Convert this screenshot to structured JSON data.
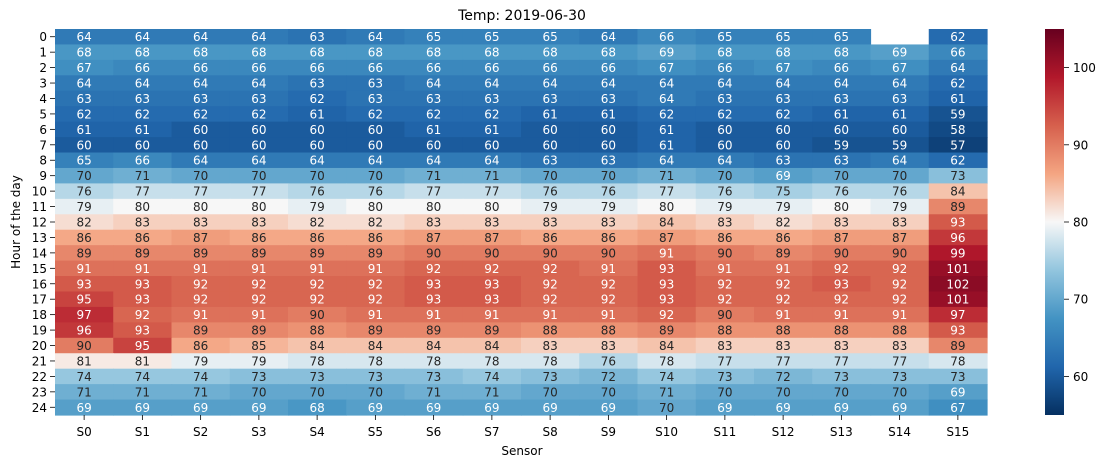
{
  "chart_data": {
    "type": "heatmap",
    "title": "Temp: 2019-06-30",
    "xlabel": "Sensor",
    "ylabel": "Hour of the day",
    "x_categories": [
      "S0",
      "S1",
      "S2",
      "S3",
      "S4",
      "S5",
      "S6",
      "S7",
      "S8",
      "S9",
      "S10",
      "S11",
      "S12",
      "S13",
      "S14",
      "S15"
    ],
    "y_categories": [
      "0",
      "1",
      "2",
      "3",
      "4",
      "5",
      "6",
      "7",
      "8",
      "9",
      "10",
      "11",
      "12",
      "13",
      "14",
      "15",
      "16",
      "17",
      "18",
      "19",
      "20",
      "21",
      "22",
      "23",
      "24"
    ],
    "values": [
      [
        64,
        64,
        64,
        64,
        63,
        64,
        65,
        65,
        65,
        64,
        66,
        65,
        65,
        65,
        null,
        62
      ],
      [
        68,
        68,
        68,
        68,
        68,
        68,
        68,
        68,
        68,
        68,
        69,
        68,
        68,
        68,
        69,
        66
      ],
      [
        67,
        66,
        66,
        66,
        66,
        66,
        66,
        66,
        66,
        66,
        67,
        66,
        67,
        66,
        67,
        64
      ],
      [
        64,
        64,
        64,
        64,
        63,
        63,
        64,
        64,
        64,
        64,
        64,
        64,
        64,
        64,
        64,
        62
      ],
      [
        63,
        63,
        63,
        63,
        62,
        63,
        63,
        63,
        63,
        63,
        64,
        63,
        63,
        63,
        63,
        61
      ],
      [
        62,
        62,
        62,
        62,
        61,
        62,
        62,
        62,
        61,
        61,
        62,
        62,
        62,
        61,
        61,
        59
      ],
      [
        61,
        61,
        60,
        60,
        60,
        60,
        61,
        61,
        60,
        60,
        61,
        60,
        60,
        60,
        60,
        58
      ],
      [
        60,
        60,
        60,
        60,
        60,
        60,
        60,
        60,
        60,
        60,
        61,
        60,
        60,
        59,
        59,
        57
      ],
      [
        65,
        66,
        64,
        64,
        64,
        64,
        64,
        64,
        63,
        63,
        64,
        64,
        63,
        63,
        64,
        62
      ],
      [
        70,
        71,
        70,
        70,
        70,
        70,
        71,
        71,
        70,
        70,
        71,
        70,
        69,
        70,
        70,
        73
      ],
      [
        76,
        77,
        77,
        77,
        76,
        76,
        77,
        77,
        76,
        76,
        77,
        76,
        75,
        76,
        76,
        84
      ],
      [
        79,
        80,
        80,
        80,
        79,
        80,
        80,
        80,
        79,
        79,
        80,
        79,
        79,
        80,
        79,
        89
      ],
      [
        82,
        83,
        83,
        83,
        82,
        82,
        83,
        83,
        83,
        83,
        84,
        83,
        82,
        83,
        83,
        93
      ],
      [
        86,
        86,
        87,
        86,
        86,
        86,
        87,
        87,
        86,
        86,
        87,
        86,
        86,
        87,
        87,
        96
      ],
      [
        89,
        89,
        89,
        89,
        89,
        89,
        90,
        90,
        90,
        90,
        91,
        90,
        89,
        90,
        90,
        99
      ],
      [
        91,
        91,
        91,
        91,
        91,
        91,
        92,
        92,
        92,
        91,
        93,
        91,
        91,
        92,
        92,
        101
      ],
      [
        93,
        93,
        92,
        92,
        92,
        92,
        93,
        93,
        92,
        92,
        93,
        92,
        92,
        93,
        92,
        102
      ],
      [
        95,
        93,
        92,
        92,
        92,
        92,
        93,
        93,
        92,
        92,
        93,
        92,
        92,
        92,
        92,
        101
      ],
      [
        97,
        92,
        91,
        91,
        90,
        91,
        91,
        91,
        91,
        91,
        92,
        90,
        91,
        91,
        91,
        97
      ],
      [
        96,
        93,
        89,
        89,
        88,
        89,
        89,
        89,
        88,
        88,
        89,
        88,
        88,
        88,
        88,
        93
      ],
      [
        90,
        95,
        86,
        85,
        84,
        84,
        84,
        84,
        83,
        83,
        84,
        83,
        83,
        83,
        83,
        89
      ],
      [
        81,
        81,
        79,
        79,
        78,
        78,
        78,
        78,
        78,
        76,
        78,
        77,
        77,
        77,
        77,
        78
      ],
      [
        74,
        74,
        74,
        73,
        73,
        73,
        73,
        74,
        73,
        72,
        74,
        73,
        72,
        73,
        73,
        73
      ],
      [
        71,
        71,
        71,
        70,
        70,
        70,
        71,
        71,
        70,
        70,
        71,
        70,
        70,
        70,
        70,
        69
      ],
      [
        69,
        69,
        69,
        69,
        68,
        69,
        69,
        69,
        69,
        69,
        70,
        69,
        69,
        69,
        69,
        67
      ]
    ],
    "colorbar": {
      "vmin": 55,
      "vmax": 105,
      "ticks": [
        60,
        70,
        80,
        90,
        100
      ],
      "colormap": "RdBu_r"
    },
    "grid": false
  }
}
